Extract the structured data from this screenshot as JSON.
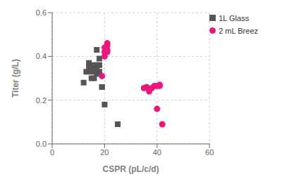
{
  "chart_data": {
    "type": "scatter",
    "xlabel": "CSPR (pL/c/d)",
    "ylabel": "Titer (g/L)",
    "xlim": [
      0,
      60
    ],
    "ylim": [
      0.0,
      0.6
    ],
    "xticks": [
      0,
      20,
      40,
      60
    ],
    "yticks": [
      {
        "value": 0.0,
        "label": "0.0"
      },
      0.2,
      0.4,
      0.6
    ],
    "grid": true,
    "legend": "upper right",
    "series": [
      {
        "name": "1L Glass",
        "color": "#555555",
        "marker": "square",
        "x": [
          12,
          13,
          14,
          14,
          15,
          15,
          15,
          16,
          16,
          16,
          17,
          17,
          17,
          17,
          18,
          18,
          18,
          19,
          19,
          20,
          25
        ],
        "values": [
          0.28,
          0.33,
          0.35,
          0.37,
          0.3,
          0.33,
          0.35,
          0.3,
          0.34,
          0.36,
          0.32,
          0.34,
          0.36,
          0.43,
          0.33,
          0.36,
          0.39,
          0.26,
          0.26,
          0.18,
          0.09
        ]
      },
      {
        "name": "2 mL Breez",
        "color": "#e8197e",
        "marker": "circle",
        "x": [
          19,
          20,
          20,
          20,
          21,
          21,
          21,
          21,
          35,
          36,
          37,
          38,
          39,
          40,
          40,
          41,
          41,
          42
        ],
        "values": [
          0.31,
          0.4,
          0.42,
          0.44,
          0.42,
          0.43,
          0.45,
          0.46,
          0.255,
          0.26,
          0.24,
          0.255,
          0.265,
          0.16,
          0.265,
          0.265,
          0.27,
          0.09
        ]
      }
    ]
  }
}
